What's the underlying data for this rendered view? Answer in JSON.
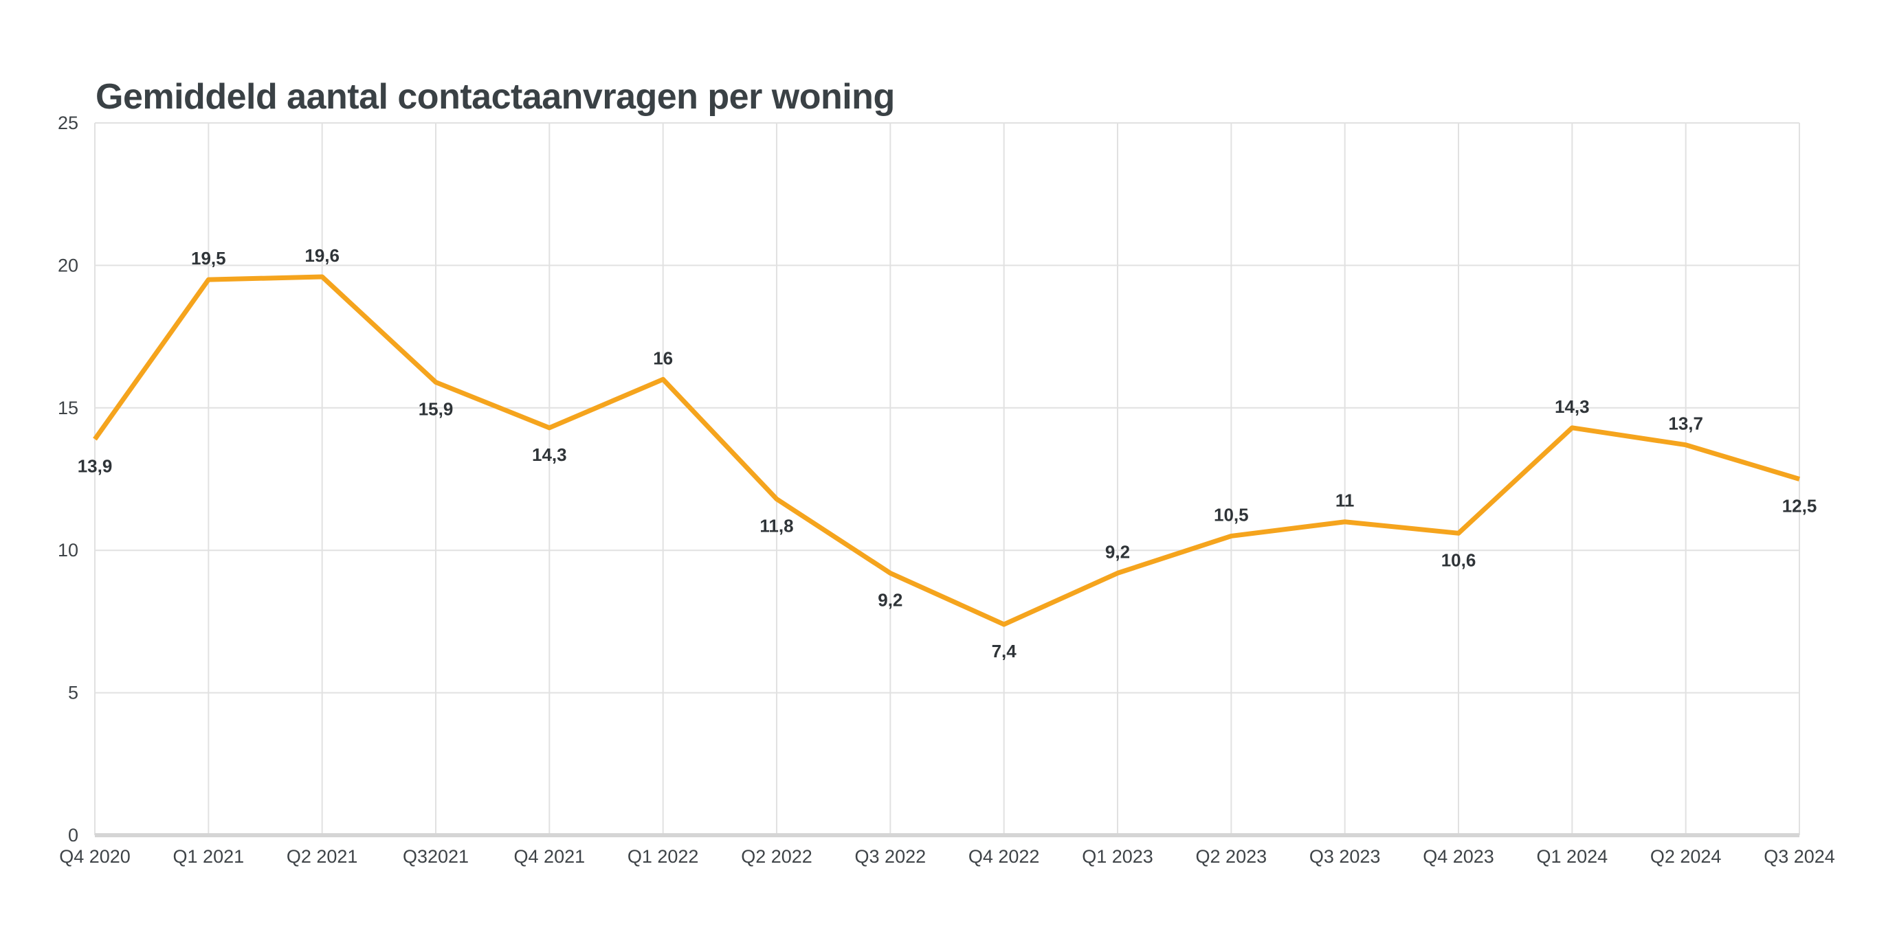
{
  "chart_data": {
    "type": "line",
    "title": "Gemiddeld aantal contactaanvragen per woning",
    "categories": [
      "Q4 2020",
      "Q1 2021",
      "Q2 2021",
      "Q32021",
      "Q4 2021",
      "Q1 2022",
      "Q2 2022",
      "Q3 2022",
      "Q4 2022",
      "Q1 2023",
      "Q2 2023",
      "Q3 2023",
      "Q4 2023",
      "Q1 2024",
      "Q2 2024",
      "Q3 2024"
    ],
    "values": [
      13.9,
      19.5,
      19.6,
      15.9,
      14.3,
      16,
      11.8,
      9.2,
      7.4,
      9.2,
      10.5,
      11,
      10.6,
      14.3,
      13.7,
      12.5
    ],
    "value_labels": [
      "13,9",
      "19,5",
      "19,6",
      "15,9",
      "14,3",
      "16",
      "11,8",
      "9,2",
      "7,4",
      "9,2",
      "10,5",
      "11",
      "10,6",
      "14,3",
      "13,7",
      "12,5"
    ],
    "value_label_positions": [
      "below",
      "above",
      "above",
      "below",
      "below",
      "above",
      "below",
      "below",
      "below",
      "above",
      "above",
      "above",
      "below",
      "above",
      "above",
      "below"
    ],
    "y_ticks": [
      "0",
      "5",
      "10",
      "15",
      "20",
      "25"
    ],
    "ylim": [
      0,
      25
    ],
    "xlabel": "",
    "ylabel": "",
    "grid": "both",
    "legend": "none",
    "colors": {
      "series": "#F5A41D",
      "grid": "#E1E1E1",
      "axis_line": "#D5D5D5",
      "tick_text": "#3E4347",
      "value_label_text": "#2F3438",
      "title_text": "#3A4145",
      "background": "#FFFFFF"
    }
  }
}
